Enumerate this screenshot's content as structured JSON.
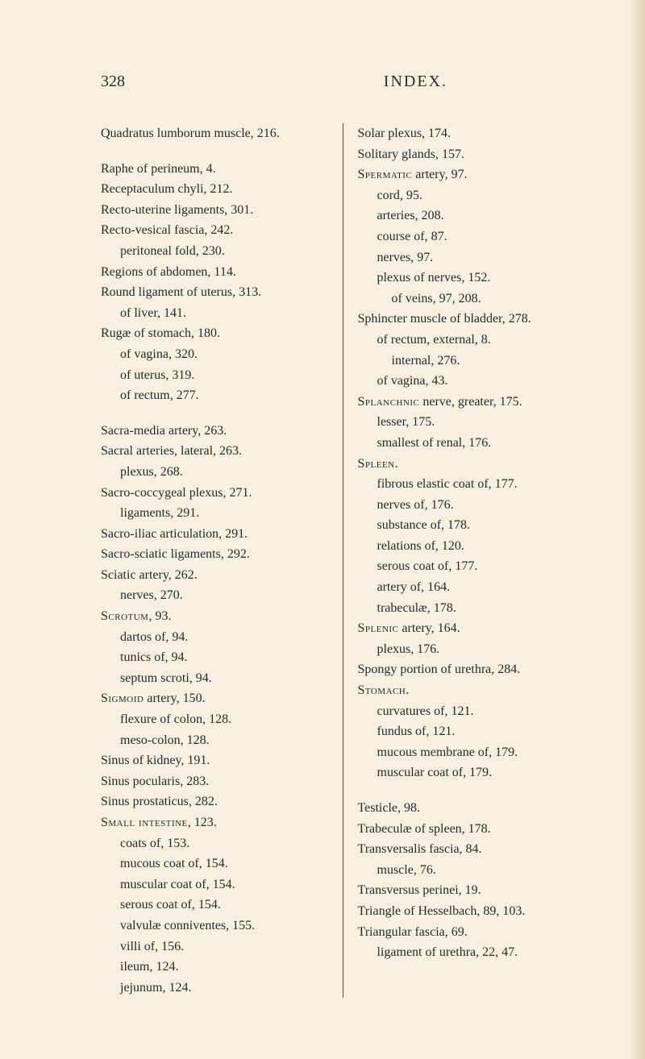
{
  "page_number": "328",
  "index_title": "INDEX.",
  "background_color": "#f5f0e0",
  "text_color": "#2a2a2a",
  "left_column": [
    {
      "text": "Quadratus lumborum muscle, 216.",
      "indent": 0,
      "gap_after": true
    },
    {
      "text": "Raphe of perineum, 4.",
      "indent": 0
    },
    {
      "text": "Receptaculum chyli, 212.",
      "indent": 0
    },
    {
      "text": "Recto-uterine ligaments, 301.",
      "indent": 0
    },
    {
      "text": "Recto-vesical fascia, 242.",
      "indent": 0
    },
    {
      "text": "peritoneal fold, 230.",
      "indent": 1
    },
    {
      "text": "Regions of abdomen, 114.",
      "indent": 0
    },
    {
      "text": "Round ligament of uterus, 313.",
      "indent": 0
    },
    {
      "text": "of liver, 141.",
      "indent": 1
    },
    {
      "text": "Rugæ of stomach, 180.",
      "indent": 0
    },
    {
      "text": "of vagina, 320.",
      "indent": 1
    },
    {
      "text": "of uterus, 319.",
      "indent": 1
    },
    {
      "text": "of rectum, 277.",
      "indent": 1,
      "gap_after": true
    },
    {
      "text": "Sacra-media artery, 263.",
      "indent": 0
    },
    {
      "text": "Sacral arteries, lateral, 263.",
      "indent": 0
    },
    {
      "text": "plexus, 268.",
      "indent": 1
    },
    {
      "text": "Sacro-coccygeal plexus, 271.",
      "indent": 0
    },
    {
      "text": "ligaments, 291.",
      "indent": 1
    },
    {
      "text": "Sacro-iliac articulation, 291.",
      "indent": 0
    },
    {
      "text": "Sacro-sciatic ligaments, 292.",
      "indent": 0
    },
    {
      "text": "Sciatic artery, 262.",
      "indent": 0
    },
    {
      "text": "nerves, 270.",
      "indent": 1
    },
    {
      "text": "Scrotum, 93.",
      "indent": 0,
      "sc_prefix": "Scrotum"
    },
    {
      "text": "dartos of, 94.",
      "indent": 1
    },
    {
      "text": "tunics of, 94.",
      "indent": 1
    },
    {
      "text": "septum scroti, 94.",
      "indent": 1
    },
    {
      "text": "Sigmoid artery, 150.",
      "indent": 0,
      "sc_prefix": "Sigmoid"
    },
    {
      "text": "flexure of colon, 128.",
      "indent": 1
    },
    {
      "text": "meso-colon, 128.",
      "indent": 1
    },
    {
      "text": "Sinus of kidney, 191.",
      "indent": 0
    },
    {
      "text": "Sinus pocularis, 283.",
      "indent": 0
    },
    {
      "text": "Sinus prostaticus, 282.",
      "indent": 0
    },
    {
      "text": "Small intestine, 123.",
      "indent": 0,
      "sc_prefix": "Small intestine"
    },
    {
      "text": "coats of, 153.",
      "indent": 1
    },
    {
      "text": "mucous coat of, 154.",
      "indent": 1
    },
    {
      "text": "muscular coat of, 154.",
      "indent": 1
    },
    {
      "text": "serous coat of, 154.",
      "indent": 1
    },
    {
      "text": "valvulæ conniventes, 155.",
      "indent": 1
    },
    {
      "text": "villi of, 156.",
      "indent": 1
    },
    {
      "text": "ileum, 124.",
      "indent": 1
    },
    {
      "text": "jejunum, 124.",
      "indent": 1
    }
  ],
  "right_column": [
    {
      "text": "Solar plexus, 174.",
      "indent": 0
    },
    {
      "text": "Solitary glands, 157.",
      "indent": 0
    },
    {
      "text": "Spermatic artery, 97.",
      "indent": 0,
      "sc_prefix": "Spermatic"
    },
    {
      "text": "cord, 95.",
      "indent": 1
    },
    {
      "text": "arteries, 208.",
      "indent": 1
    },
    {
      "text": "course of, 87.",
      "indent": 1
    },
    {
      "text": "nerves, 97.",
      "indent": 1
    },
    {
      "text": "plexus of nerves, 152.",
      "indent": 1
    },
    {
      "text": "of veins, 97, 208.",
      "indent": 2
    },
    {
      "text": "Sphincter muscle of bladder, 278.",
      "indent": 0
    },
    {
      "text": "of rectum, external, 8.",
      "indent": 1
    },
    {
      "text": "internal, 276.",
      "indent": 2
    },
    {
      "text": "of vagina, 43.",
      "indent": 1
    },
    {
      "text": "Splanchnic nerve, greater, 175.",
      "indent": 0,
      "sc_prefix": "Splanchnic"
    },
    {
      "text": "lesser, 175.",
      "indent": 1
    },
    {
      "text": "smallest of renal, 176.",
      "indent": 1
    },
    {
      "text": "Spleen.",
      "indent": 0,
      "sc_prefix": "Spleen"
    },
    {
      "text": "fibrous elastic coat of, 177.",
      "indent": 1
    },
    {
      "text": "nerves of, 176.",
      "indent": 1
    },
    {
      "text": "substance of, 178.",
      "indent": 1
    },
    {
      "text": "relations of, 120.",
      "indent": 1
    },
    {
      "text": "serous coat of, 177.",
      "indent": 1
    },
    {
      "text": "artery of, 164.",
      "indent": 1
    },
    {
      "text": "trabeculæ, 178.",
      "indent": 1
    },
    {
      "text": "Splenic artery, 164.",
      "indent": 0,
      "sc_prefix": "Splenic"
    },
    {
      "text": "plexus, 176.",
      "indent": 1
    },
    {
      "text": "Spongy portion of urethra, 284.",
      "indent": 0
    },
    {
      "text": "Stomach.",
      "indent": 0,
      "sc_prefix": "Stomach"
    },
    {
      "text": "curvatures of, 121.",
      "indent": 1
    },
    {
      "text": "fundus of, 121.",
      "indent": 1
    },
    {
      "text": "mucous membrane of, 179.",
      "indent": 1
    },
    {
      "text": "muscular coat of, 179.",
      "indent": 1,
      "gap_after": true
    },
    {
      "text": "Testicle, 98.",
      "indent": 0
    },
    {
      "text": "Trabeculæ of spleen, 178.",
      "indent": 0
    },
    {
      "text": "Transversalis fascia, 84.",
      "indent": 0
    },
    {
      "text": "muscle, 76.",
      "indent": 1
    },
    {
      "text": "Transversus perinei, 19.",
      "indent": 0
    },
    {
      "text": "Triangle of Hesselbach, 89, 103.",
      "indent": 0
    },
    {
      "text": "Triangular fascia, 69.",
      "indent": 0
    },
    {
      "text": "ligament of urethra, 22, 47.",
      "indent": 1
    }
  ]
}
